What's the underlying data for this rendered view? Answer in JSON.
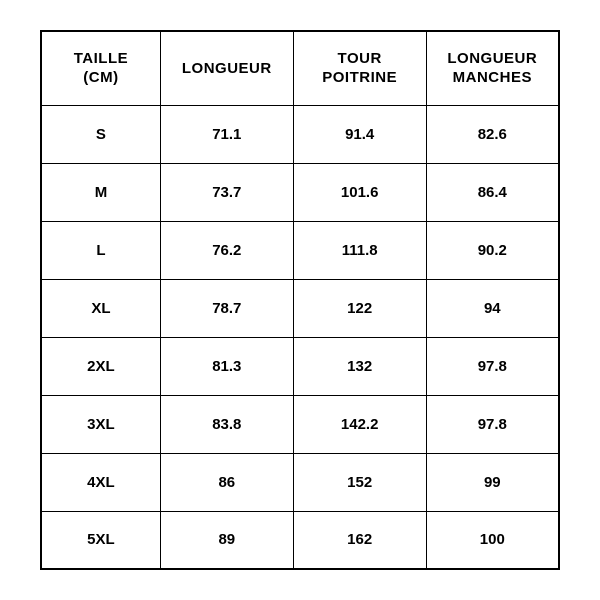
{
  "table": {
    "type": "table",
    "background_color": "#ffffff",
    "border_color": "#000000",
    "text_color": "#000000",
    "font_family": "Arial, Helvetica, sans-serif",
    "header_fontsize": 15,
    "cell_fontsize": 15,
    "font_weight": 700,
    "border_width_outer": 2,
    "border_width_inner": 1,
    "columns": [
      {
        "key": "size",
        "label_line1": "TAILLE",
        "label_line2": "(CM)",
        "width_pct": 23
      },
      {
        "key": "length",
        "label_line1": "LONGUEUR",
        "label_line2": "",
        "width_pct": 25.6
      },
      {
        "key": "chest",
        "label_line1": "TOUR",
        "label_line2": "POITRINE",
        "width_pct": 25.6
      },
      {
        "key": "sleeve",
        "label_line1": "LONGUEUR",
        "label_line2": "MANCHES",
        "width_pct": 25.6
      }
    ],
    "rows": [
      {
        "size": "S",
        "length": "71.1",
        "chest": "91.4",
        "sleeve": "82.6"
      },
      {
        "size": "M",
        "length": "73.7",
        "chest": "101.6",
        "sleeve": "86.4"
      },
      {
        "size": "L",
        "length": "76.2",
        "chest": "111.8",
        "sleeve": "90.2"
      },
      {
        "size": "XL",
        "length": "78.7",
        "chest": "122",
        "sleeve": "94"
      },
      {
        "size": "2XL",
        "length": "81.3",
        "chest": "132",
        "sleeve": "97.8"
      },
      {
        "size": "3XL",
        "length": "83.8",
        "chest": "142.2",
        "sleeve": "97.8"
      },
      {
        "size": "4XL",
        "length": "86",
        "chest": "152",
        "sleeve": "99"
      },
      {
        "size": "5XL",
        "length": "89",
        "chest": "162",
        "sleeve": "100"
      }
    ]
  }
}
